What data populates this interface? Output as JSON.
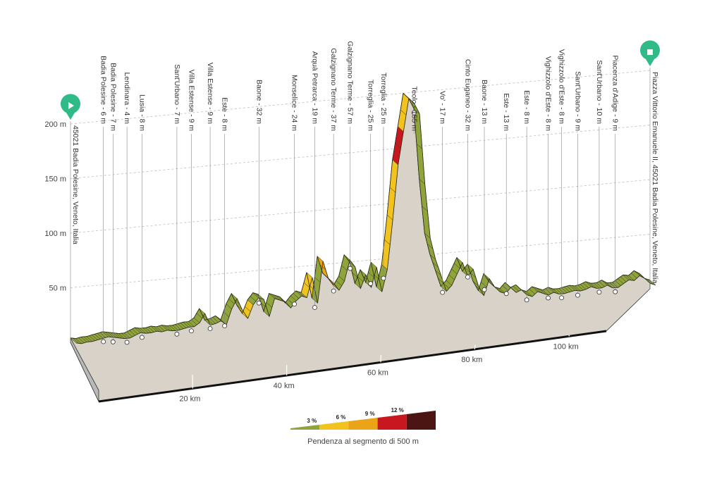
{
  "chart_data": {
    "type": "area",
    "title": "",
    "xlabel": "",
    "ylabel": "",
    "x_unit": "km",
    "y_unit": "m",
    "xlim": [
      0,
      110
    ],
    "ylim": [
      0,
      200
    ],
    "grid": true,
    "y_ticks": [
      {
        "value": 50,
        "label": "50 m"
      },
      {
        "value": 100,
        "label": "100 m"
      },
      {
        "value": 150,
        "label": "150 m"
      },
      {
        "value": 200,
        "label": "200 m"
      }
    ],
    "x_ticks": [
      {
        "value": 20,
        "label": "20 km"
      },
      {
        "value": 40,
        "label": "40 km"
      },
      {
        "value": 60,
        "label": "60 km"
      },
      {
        "value": 80,
        "label": "80 km"
      },
      {
        "value": 100,
        "label": "100 km"
      }
    ],
    "start": {
      "label": "45021 Badia Polesine, Veneto, Italia",
      "icon": "play-icon"
    },
    "finish": {
      "label": "Piazza Vittorio Emanuele II, 45021 Badia Polesine, Veneto, Italia",
      "icon": "stop-icon"
    },
    "waypoints": [
      {
        "label": "Badia Polesine - 6 m",
        "km": 5.6,
        "elev": 6
      },
      {
        "label": "Badia Polesine - 7 m",
        "km": 7.4,
        "elev": 7
      },
      {
        "label": "Lendinara - 4 m",
        "km": 10.0,
        "elev": 4
      },
      {
        "label": "Lusia - 8 m",
        "km": 12.8,
        "elev": 8
      },
      {
        "label": "Sant'Urbano - 7 m",
        "km": 19.3,
        "elev": 7
      },
      {
        "label": "Villa Estense - 9 m",
        "km": 22.0,
        "elev": 9
      },
      {
        "label": "Villa Estense - 9 m",
        "km": 25.5,
        "elev": 9
      },
      {
        "label": "Este - 8 m",
        "km": 28.2,
        "elev": 8
      },
      {
        "label": "Baone - 32 m",
        "km": 34.6,
        "elev": 32
      },
      {
        "label": "Monselice - 24 m",
        "km": 41.2,
        "elev": 24
      },
      {
        "label": "Arquà Petrarca - 19 m",
        "km": 45.0,
        "elev": 19
      },
      {
        "label": "Galzignano Terme - 37 m",
        "km": 48.5,
        "elev": 37
      },
      {
        "label": "Galzignano Terme - 57 m",
        "km": 51.6,
        "elev": 57
      },
      {
        "label": "Torreglia - 25 m",
        "km": 55.4,
        "elev": 25
      },
      {
        "label": "Torreglia - 25 m",
        "km": 57.8,
        "elev": 25
      },
      {
        "label": "Teolo - 155 m",
        "km": 63.5,
        "elev": 155
      },
      {
        "label": "Vo' - 17 m",
        "km": 68.8,
        "elev": 17
      },
      {
        "label": "Cinto Euganeo - 32 m",
        "km": 73.5,
        "elev": 32
      },
      {
        "label": "Baone - 13 m",
        "km": 76.6,
        "elev": 13
      },
      {
        "label": "Este - 13 m",
        "km": 80.7,
        "elev": 13
      },
      {
        "label": "Este - 8 m",
        "km": 84.5,
        "elev": 8
      },
      {
        "label": "Vighizzolo d'Este - 8 m",
        "km": 88.5,
        "elev": 8
      },
      {
        "label": "Vighizzolo d'Este - 8 m",
        "km": 91.0,
        "elev": 8
      },
      {
        "label": "Sant'Urbano - 9 m",
        "km": 94.0,
        "elev": 9
      },
      {
        "label": "Sant'Urbano - 10 m",
        "km": 98.0,
        "elev": 10
      },
      {
        "label": "Piacenza d'Adige - 9 m",
        "km": 101.0,
        "elev": 9
      }
    ],
    "profile": [
      [
        0,
        4
      ],
      [
        1,
        3
      ],
      [
        2,
        4
      ],
      [
        3,
        4
      ],
      [
        4,
        5
      ],
      [
        5,
        6
      ],
      [
        6,
        7
      ],
      [
        7,
        6
      ],
      [
        8,
        5
      ],
      [
        9,
        4
      ],
      [
        10,
        4
      ],
      [
        11,
        6
      ],
      [
        12,
        8
      ],
      [
        13,
        7
      ],
      [
        14,
        7
      ],
      [
        15,
        8
      ],
      [
        16,
        7
      ],
      [
        17,
        8
      ],
      [
        18,
        7
      ],
      [
        19,
        7
      ],
      [
        20,
        8
      ],
      [
        21,
        9
      ],
      [
        22,
        9
      ],
      [
        23,
        12
      ],
      [
        24,
        20
      ],
      [
        25,
        9
      ],
      [
        26,
        10
      ],
      [
        27,
        12
      ],
      [
        28,
        8
      ],
      [
        29,
        22
      ],
      [
        30,
        31
      ],
      [
        31,
        20
      ],
      [
        32,
        12
      ],
      [
        33,
        24
      ],
      [
        34,
        30
      ],
      [
        35,
        28
      ],
      [
        36,
        12
      ],
      [
        37,
        28
      ],
      [
        38,
        26
      ],
      [
        39,
        24
      ],
      [
        40,
        18
      ],
      [
        41,
        24
      ],
      [
        42,
        28
      ],
      [
        43,
        26
      ],
      [
        44,
        44
      ],
      [
        45,
        20
      ],
      [
        46,
        58
      ],
      [
        47,
        42
      ],
      [
        48,
        37
      ],
      [
        49,
        30
      ],
      [
        50,
        38
      ],
      [
        51,
        57
      ],
      [
        52,
        50
      ],
      [
        53,
        30
      ],
      [
        54,
        42
      ],
      [
        55,
        30
      ],
      [
        56,
        48
      ],
      [
        57,
        25
      ],
      [
        58,
        45
      ],
      [
        59,
        90
      ],
      [
        60,
        140
      ],
      [
        61,
        170
      ],
      [
        62,
        200
      ],
      [
        63,
        195
      ],
      [
        64,
        185
      ],
      [
        65,
        120
      ],
      [
        66,
        70
      ],
      [
        67,
        50
      ],
      [
        68,
        35
      ],
      [
        69,
        20
      ],
      [
        70,
        25
      ],
      [
        71,
        35
      ],
      [
        72,
        45
      ],
      [
        73,
        32
      ],
      [
        74,
        38
      ],
      [
        75,
        22
      ],
      [
        76,
        13
      ],
      [
        77,
        28
      ],
      [
        78,
        20
      ],
      [
        79,
        15
      ],
      [
        80,
        13
      ],
      [
        81,
        18
      ],
      [
        82,
        13
      ],
      [
        83,
        15
      ],
      [
        84,
        10
      ],
      [
        85,
        8
      ],
      [
        86,
        12
      ],
      [
        87,
        10
      ],
      [
        88,
        8
      ],
      [
        89,
        10
      ],
      [
        90,
        8
      ],
      [
        91,
        8
      ],
      [
        92,
        9
      ],
      [
        93,
        10
      ],
      [
        94,
        9
      ],
      [
        95,
        10
      ],
      [
        96,
        12
      ],
      [
        97,
        10
      ],
      [
        98,
        10
      ],
      [
        99,
        12
      ],
      [
        100,
        9
      ],
      [
        101,
        9
      ],
      [
        102,
        12
      ],
      [
        103,
        15
      ],
      [
        104,
        14
      ],
      [
        105,
        18
      ],
      [
        106,
        15
      ],
      [
        107,
        10
      ],
      [
        108,
        8
      ]
    ],
    "steep_segments": [
      {
        "from": 31.0,
        "to": 33.2,
        "grade_class": "6 %"
      },
      {
        "from": 43.2,
        "to": 45.2,
        "grade_class": "6 %"
      },
      {
        "from": 45.8,
        "to": 48.6,
        "grade_class": "9 %"
      },
      {
        "from": 58.0,
        "to": 59.8,
        "grade_class": "6 %"
      },
      {
        "from": 59.8,
        "to": 61.2,
        "grade_class": "12 %"
      },
      {
        "from": 61.2,
        "to": 62.0,
        "grade_class": "6 %"
      },
      {
        "from": 62.0,
        "to": 63.0,
        "grade_class": "6 %"
      }
    ],
    "legend": {
      "caption": "Pendenza al segmento di 500 m",
      "items": [
        {
          "label": "3 %",
          "color": "#8fa43a"
        },
        {
          "label": "6 %",
          "color": "#f1c31c"
        },
        {
          "label": "9 %",
          "color": "#eba417"
        },
        {
          "label": "12 %",
          "color": "#c9171f"
        },
        {
          "label": "",
          "color": "#4a1512"
        }
      ]
    },
    "colors": {
      "slope_green": "#8fa43a",
      "slope_yellow": "#f1c31c",
      "slope_orange": "#eba417",
      "slope_red": "#c9171f",
      "slope_dark": "#4a1512",
      "terrain": "#d8d2c8",
      "side": "#b9b9b9",
      "grid": "#bdbdbd",
      "marker": "#2fba87"
    }
  }
}
